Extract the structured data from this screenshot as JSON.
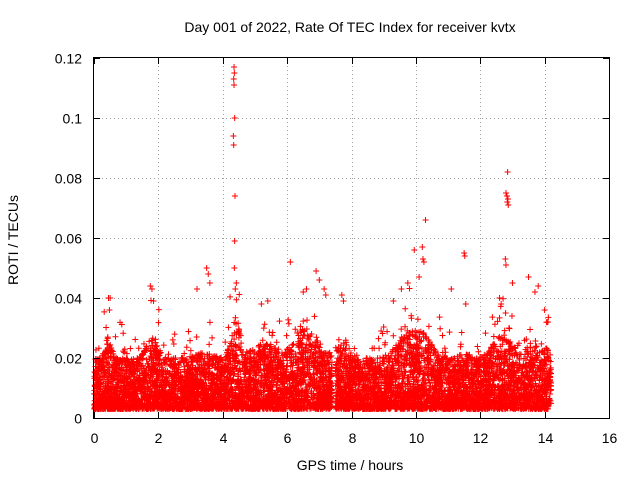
{
  "chart_data": {
    "type": "scatter",
    "title": "Day 001 of 2022, Rate Of TEC Index for receiver kvtx",
    "xlabel": "GPS time / hours",
    "ylabel": "ROTI / TECUs",
    "xlim": [
      0,
      16
    ],
    "ylim": [
      0,
      0.12
    ],
    "xticks": [
      0,
      2,
      4,
      6,
      8,
      10,
      12,
      14,
      16
    ],
    "xtick_labels": [
      "0",
      "2",
      "4",
      "6",
      "8",
      "10",
      "12",
      "14",
      "16"
    ],
    "yticks": [
      0,
      0.02,
      0.04,
      0.06,
      0.08,
      0.1,
      0.12
    ],
    "ytick_labels": [
      "0",
      "0.02",
      "0.04",
      "0.06",
      "0.08",
      "0.1",
      "0.12"
    ],
    "grid": true,
    "marker": "+",
    "color": "#ff0000",
    "series": [
      {
        "name": "ROTI",
        "segments": [
          [
            0.0,
            7.4
          ],
          [
            7.5,
            14.2
          ]
        ],
        "points": [
          [
            4.35,
            0.117
          ],
          [
            4.36,
            0.115
          ],
          [
            4.34,
            0.113
          ],
          [
            4.35,
            0.111
          ],
          [
            4.37,
            0.1
          ],
          [
            4.33,
            0.094
          ],
          [
            4.34,
            0.091
          ],
          [
            4.38,
            0.074
          ],
          [
            4.37,
            0.059
          ],
          [
            4.36,
            0.05
          ],
          [
            4.39,
            0.043
          ],
          [
            12.85,
            0.082
          ],
          [
            12.8,
            0.075
          ],
          [
            12.83,
            0.074
          ],
          [
            12.86,
            0.073
          ],
          [
            12.84,
            0.072
          ],
          [
            12.87,
            0.071
          ],
          [
            10.3,
            0.066
          ],
          [
            10.2,
            0.057
          ],
          [
            9.95,
            0.056
          ],
          [
            10.22,
            0.053
          ],
          [
            10.25,
            0.052
          ],
          [
            11.5,
            0.055
          ],
          [
            11.52,
            0.054
          ],
          [
            12.78,
            0.053
          ],
          [
            12.8,
            0.051
          ],
          [
            6.1,
            0.052
          ],
          [
            6.9,
            0.049
          ],
          [
            7.0,
            0.046
          ],
          [
            3.5,
            0.05
          ],
          [
            3.55,
            0.048
          ],
          [
            0.45,
            0.04
          ],
          [
            0.5,
            0.04
          ],
          [
            0.48,
            0.036
          ],
          [
            1.75,
            0.044
          ],
          [
            1.8,
            0.043
          ],
          [
            1.85,
            0.039
          ],
          [
            3.2,
            0.043
          ],
          [
            3.6,
            0.045
          ],
          [
            5.2,
            0.038
          ],
          [
            5.4,
            0.039
          ],
          [
            6.5,
            0.042
          ],
          [
            6.6,
            0.043
          ],
          [
            7.15,
            0.043
          ],
          [
            7.2,
            0.041
          ],
          [
            7.7,
            0.041
          ],
          [
            7.75,
            0.039
          ],
          [
            9.3,
            0.039
          ],
          [
            9.55,
            0.043
          ],
          [
            9.75,
            0.045
          ],
          [
            10.1,
            0.047
          ],
          [
            11.1,
            0.043
          ],
          [
            11.55,
            0.038
          ],
          [
            12.6,
            0.04
          ],
          [
            12.65,
            0.038
          ],
          [
            13.0,
            0.045
          ],
          [
            13.5,
            0.047
          ],
          [
            13.7,
            0.042
          ],
          [
            13.8,
            0.044
          ],
          [
            14.0,
            0.036
          ],
          [
            14.1,
            0.032
          ]
        ]
      }
    ]
  }
}
